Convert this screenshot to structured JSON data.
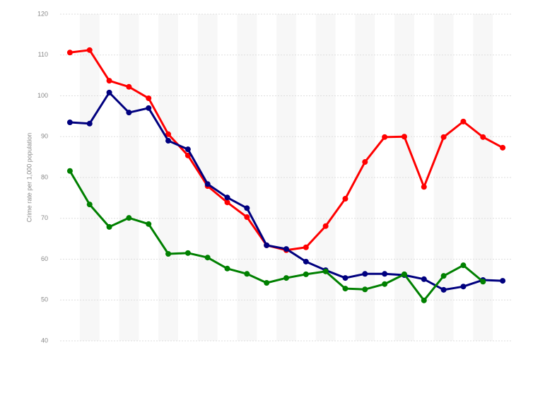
{
  "chart_data": {
    "type": "line",
    "y_label": "Crime rate per 1,000 population",
    "categories": [
      null,
      null,
      null,
      null,
      null,
      null,
      null,
      null,
      null,
      null,
      null,
      null,
      null,
      null,
      null,
      null,
      null,
      null,
      null,
      null,
      null,
      null,
      null
    ],
    "series": [
      {
        "color": "#ff0000",
        "values": [
          110.6,
          111.2,
          103.7,
          102.2,
          99.4,
          90.6,
          85.4,
          77.9,
          73.9,
          70.3,
          63.4,
          62.2,
          62.9,
          68.1,
          74.8,
          83.8,
          89.9,
          90.0,
          77.7,
          89.9,
          93.7,
          89.9,
          87.3
        ]
      },
      {
        "color": "#00007f",
        "values": [
          93.5,
          93.2,
          100.8,
          95.9,
          97.0,
          89.0,
          86.9,
          78.4,
          75.1,
          72.5,
          63.4,
          62.5,
          59.4,
          57.3,
          55.4,
          56.4,
          56.4,
          56.1,
          55.1,
          52.5,
          53.3,
          54.9,
          54.7
        ]
      },
      {
        "color": "#008000",
        "values": [
          81.6,
          73.4,
          67.9,
          70.1,
          68.6,
          61.3,
          61.5,
          60.4,
          57.7,
          56.4,
          54.2,
          55.4,
          56.3,
          57.0,
          52.8,
          52.6,
          53.9,
          56.3,
          49.9,
          55.9,
          58.5,
          54.5,
          null
        ]
      }
    ],
    "ylim": [
      40,
      120
    ],
    "yticks": [
      40,
      50,
      60,
      70,
      80,
      90,
      100,
      110,
      120
    ],
    "grid": true
  }
}
